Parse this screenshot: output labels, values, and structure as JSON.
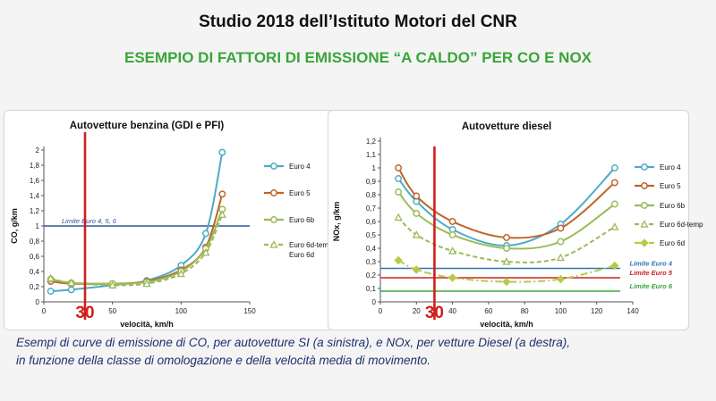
{
  "header": {
    "title": "Studio 2018 dell’Istituto Motori  del CNR",
    "subtitle": "ESEMPIO DI FATTORI DI EMISSIONE “A CALDO” PER CO E NOX"
  },
  "caption": {
    "line1": "Esempi di curve di emissione di CO, per  autovetture SI (a sinistra), e NOx,  per vetture Diesel (a destra),",
    "line2": "in funzione della classe di omologazione  e della velocità media di movimento."
  },
  "colors": {
    "euro4": "#4bacc6",
    "euro5": "#c0652a",
    "euro6b": "#9bbb59",
    "euro6d_temp": "#9bbb59",
    "euro6d": "#b8c94a",
    "marker": "#d0201e",
    "limit_left": "#2f5597",
    "limit_euro4": "#2e75b6",
    "limit_euro5": "#d0201e",
    "limit_euro6": "#3aa53a"
  },
  "chart_data": [
    {
      "type": "line",
      "title": "Autovetture benzina (GDI e PFI)",
      "xlabel": "velocità, km/h",
      "ylabel": "CO, g/km",
      "xlim": [
        0,
        150
      ],
      "ylim": [
        0,
        2
      ],
      "xticks": [
        "0",
        "50",
        "100",
        "150"
      ],
      "yticks": [
        "0",
        "0,2",
        "0,4",
        "0,6",
        "0,8",
        "1",
        "1,2",
        "1,4",
        "1,6",
        "1,8",
        "2"
      ],
      "marker_value": 30,
      "marker_label": "30",
      "limit": {
        "value": 1,
        "label": "Limite Euro 4, 5, 6"
      },
      "series": [
        {
          "name": "Euro 4",
          "x": [
            5,
            20,
            50,
            75,
            100,
            118,
            130
          ],
          "values": [
            0.14,
            0.16,
            0.22,
            0.28,
            0.48,
            0.9,
            1.97
          ]
        },
        {
          "name": "Euro 5",
          "x": [
            5,
            20,
            50,
            75,
            100,
            118,
            130
          ],
          "values": [
            0.27,
            0.24,
            0.24,
            0.27,
            0.42,
            0.72,
            1.42
          ]
        },
        {
          "name": "Euro 6b",
          "x": [
            5,
            20,
            50,
            75,
            100,
            118,
            130
          ],
          "values": [
            0.3,
            0.25,
            0.24,
            0.26,
            0.4,
            0.7,
            1.22
          ]
        },
        {
          "name": "Euro 6d-temp, Euro 6d",
          "x": [
            5,
            20,
            50,
            75,
            100,
            118,
            130
          ],
          "values": [
            0.31,
            0.25,
            0.22,
            0.24,
            0.37,
            0.65,
            1.15
          ]
        }
      ]
    },
    {
      "type": "line",
      "title": "Autovetture diesel",
      "xlabel": "velocità, km/h",
      "ylabel": "NOx, g/km",
      "xlim": [
        0,
        140
      ],
      "ylim": [
        0,
        1.2
      ],
      "xticks": [
        "0",
        "20",
        "40",
        "60",
        "80",
        "100",
        "120",
        "140"
      ],
      "yticks": [
        "0",
        "0,1",
        "0,2",
        "0,3",
        "0,4",
        "0,5",
        "0,6",
        "0,7",
        "0,8",
        "0,9",
        "1",
        "1,1",
        "1,2"
      ],
      "marker_value": 30,
      "marker_label": "30",
      "limits": [
        {
          "value": 0.25,
          "label": "Limite Euro 4"
        },
        {
          "value": 0.18,
          "label": "Limite Euro 5"
        },
        {
          "value": 0.08,
          "label": "Limite Euro 6"
        }
      ],
      "series": [
        {
          "name": "Euro 4",
          "x": [
            10,
            20,
            40,
            70,
            100,
            130
          ],
          "values": [
            0.92,
            0.75,
            0.54,
            0.42,
            0.58,
            1.0
          ]
        },
        {
          "name": "Euro 5",
          "x": [
            10,
            20,
            40,
            70,
            100,
            130
          ],
          "values": [
            1.0,
            0.79,
            0.6,
            0.48,
            0.55,
            0.89
          ]
        },
        {
          "name": "Euro 6b",
          "x": [
            10,
            20,
            40,
            70,
            100,
            130
          ],
          "values": [
            0.82,
            0.66,
            0.5,
            0.4,
            0.45,
            0.73
          ]
        },
        {
          "name": "Euro 6d-temp",
          "x": [
            10,
            20,
            40,
            70,
            100,
            130
          ],
          "values": [
            0.63,
            0.5,
            0.38,
            0.3,
            0.33,
            0.56
          ]
        },
        {
          "name": "Euro 6d",
          "x": [
            10,
            20,
            40,
            70,
            100,
            130
          ],
          "values": [
            0.31,
            0.24,
            0.18,
            0.15,
            0.17,
            0.27
          ]
        }
      ]
    }
  ]
}
